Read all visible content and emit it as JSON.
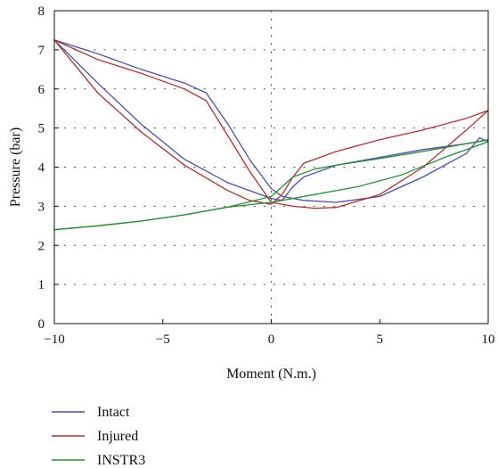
{
  "chart_data": {
    "type": "line",
    "title": "",
    "xlabel": "Moment (N.m.)",
    "ylabel": "Pressure (bar)",
    "xlim": [
      -10,
      10
    ],
    "ylim": [
      0,
      8
    ],
    "xticks": [
      -10,
      -5,
      0,
      5,
      10
    ],
    "xtick_labels": [
      "−10",
      "−5",
      "0",
      "5",
      "10"
    ],
    "yticks": [
      0,
      1,
      2,
      3,
      4,
      5,
      6,
      7,
      8
    ],
    "ytick_labels": [
      "0",
      "1",
      "2",
      "3",
      "4",
      "5",
      "6",
      "7",
      "8"
    ],
    "grid": "dotted",
    "legend_position": "below",
    "series": [
      {
        "name": "Intact",
        "color": "#4a4fa6",
        "curves": [
          {
            "x": [
              -10,
              -8,
              -6,
              -4,
              -3,
              -2,
              -1,
              0,
              0.5,
              1.5,
              3,
              5,
              7,
              9,
              9.6,
              10
            ],
            "y": [
              7.25,
              6.9,
              6.5,
              6.15,
              5.9,
              5.1,
              4.2,
              3.45,
              3.25,
              3.15,
              3.1,
              3.25,
              3.75,
              4.35,
              4.75,
              4.65
            ]
          },
          {
            "x": [
              -10,
              -8,
              -6,
              -4,
              -2,
              0,
              0.5,
              1,
              1.5,
              3,
              5,
              7,
              9,
              10
            ],
            "y": [
              7.25,
              6.15,
              5.1,
              4.2,
              3.6,
              3.2,
              3.15,
              3.5,
              3.75,
              4.05,
              4.25,
              4.45,
              4.6,
              4.7
            ]
          }
        ]
      },
      {
        "name": "Injured",
        "color": "#a83232",
        "curves": [
          {
            "x": [
              -10,
              -8,
              -6,
              -4,
              -3,
              -2,
              -1,
              0,
              1,
              2,
              3,
              5,
              7,
              9,
              10
            ],
            "y": [
              7.25,
              6.75,
              6.4,
              6.0,
              5.7,
              4.8,
              3.9,
              3.1,
              3.0,
              2.95,
              2.97,
              3.3,
              4.0,
              4.95,
              5.45
            ]
          },
          {
            "x": [
              -10,
              -8,
              -6,
              -4,
              -2,
              -1,
              0,
              0.5,
              1,
              1.5,
              3,
              5,
              7,
              9,
              10
            ],
            "y": [
              7.25,
              5.9,
              4.9,
              4.05,
              3.4,
              3.15,
              3.05,
              3.3,
              3.75,
              4.1,
              4.4,
              4.7,
              4.95,
              5.25,
              5.45
            ]
          }
        ]
      },
      {
        "name": "INSTR3",
        "color": "#2e8b3a",
        "curves": [
          {
            "x": [
              -10,
              -8,
              -6,
              -4,
              -2,
              0,
              1,
              2,
              3,
              5,
              7,
              9,
              10
            ],
            "y": [
              2.4,
              2.5,
              2.62,
              2.78,
              2.98,
              3.25,
              3.75,
              3.95,
              4.05,
              4.22,
              4.4,
              4.6,
              4.7
            ]
          },
          {
            "x": [
              -10,
              -8,
              -6,
              -4,
              -2,
              0,
              2,
              4,
              6,
              8,
              10
            ],
            "y": [
              2.4,
              2.5,
              2.62,
              2.78,
              2.98,
              3.1,
              3.3,
              3.5,
              3.8,
              4.25,
              4.65
            ]
          }
        ]
      }
    ]
  }
}
